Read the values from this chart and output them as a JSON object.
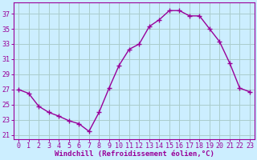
{
  "hours": [
    0,
    1,
    2,
    3,
    4,
    5,
    6,
    7,
    8,
    9,
    10,
    11,
    12,
    13,
    14,
    15,
    16,
    17,
    18,
    19,
    20,
    21,
    22,
    23
  ],
  "values": [
    27.0,
    26.5,
    24.8,
    24.0,
    23.5,
    22.9,
    22.5,
    21.5,
    24.0,
    27.2,
    30.2,
    32.3,
    33.0,
    35.3,
    36.2,
    37.4,
    37.4,
    36.7,
    36.7,
    35.0,
    33.3,
    30.5,
    27.2,
    26.7
  ],
  "line_color": "#990099",
  "marker": "+",
  "marker_size": 4,
  "bg_color": "#cceeff",
  "grid_color": "#aacccc",
  "xlabel": "Windchill (Refroidissement éolien,°C)",
  "xlabel_color": "#990099",
  "ylim": [
    20.5,
    38.5
  ],
  "xlim": [
    -0.5,
    23.5
  ],
  "yticks": [
    21,
    23,
    25,
    27,
    29,
    31,
    33,
    35,
    37
  ],
  "xtick_labels": [
    "0",
    "1",
    "2",
    "3",
    "4",
    "5",
    "6",
    "7",
    "8",
    "9",
    "10",
    "11",
    "12",
    "13",
    "14",
    "15",
    "16",
    "17",
    "18",
    "19",
    "20",
    "21",
    "22",
    "23"
  ],
  "tick_color": "#990099",
  "spine_color": "#990099",
  "linewidth": 1.0,
  "tick_fontsize": 6.0,
  "xlabel_fontsize": 6.5
}
